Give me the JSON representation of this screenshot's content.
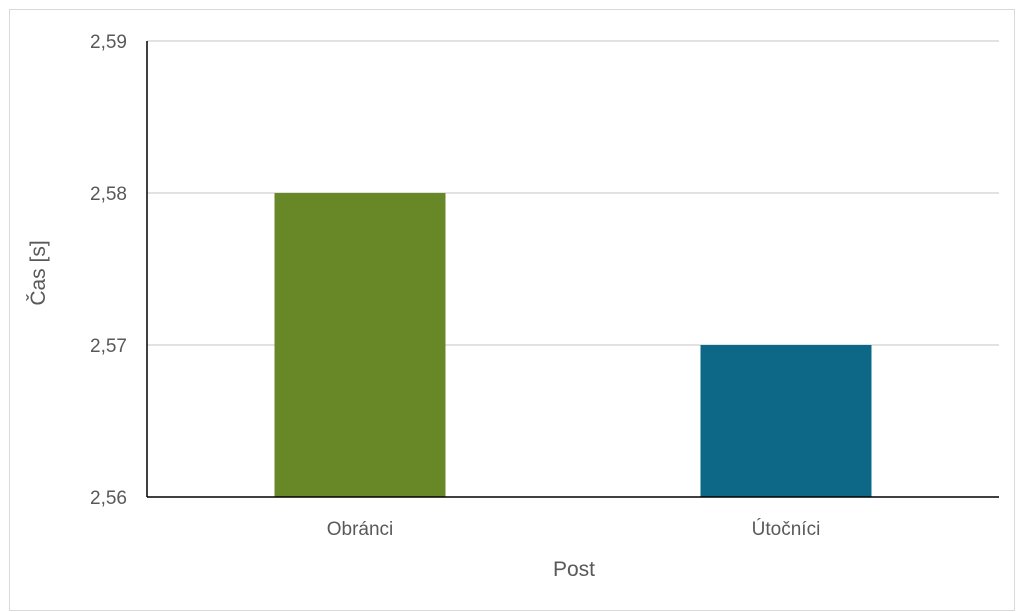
{
  "chart_data": {
    "type": "bar",
    "categories": [
      "Obránci",
      "Útočníci"
    ],
    "values": [
      2.58,
      2.57
    ],
    "bar_colors": [
      "#688828",
      "#0d6888"
    ],
    "xlabel": "Post",
    "ylabel": "Čas [s]",
    "ylim": [
      2.56,
      2.59
    ],
    "yticks": [
      2.56,
      2.57,
      2.58,
      2.59
    ],
    "ytick_labels": [
      "2,56",
      "2,57",
      "2,58",
      "2,59"
    ],
    "grid": true,
    "legend": "none"
  }
}
